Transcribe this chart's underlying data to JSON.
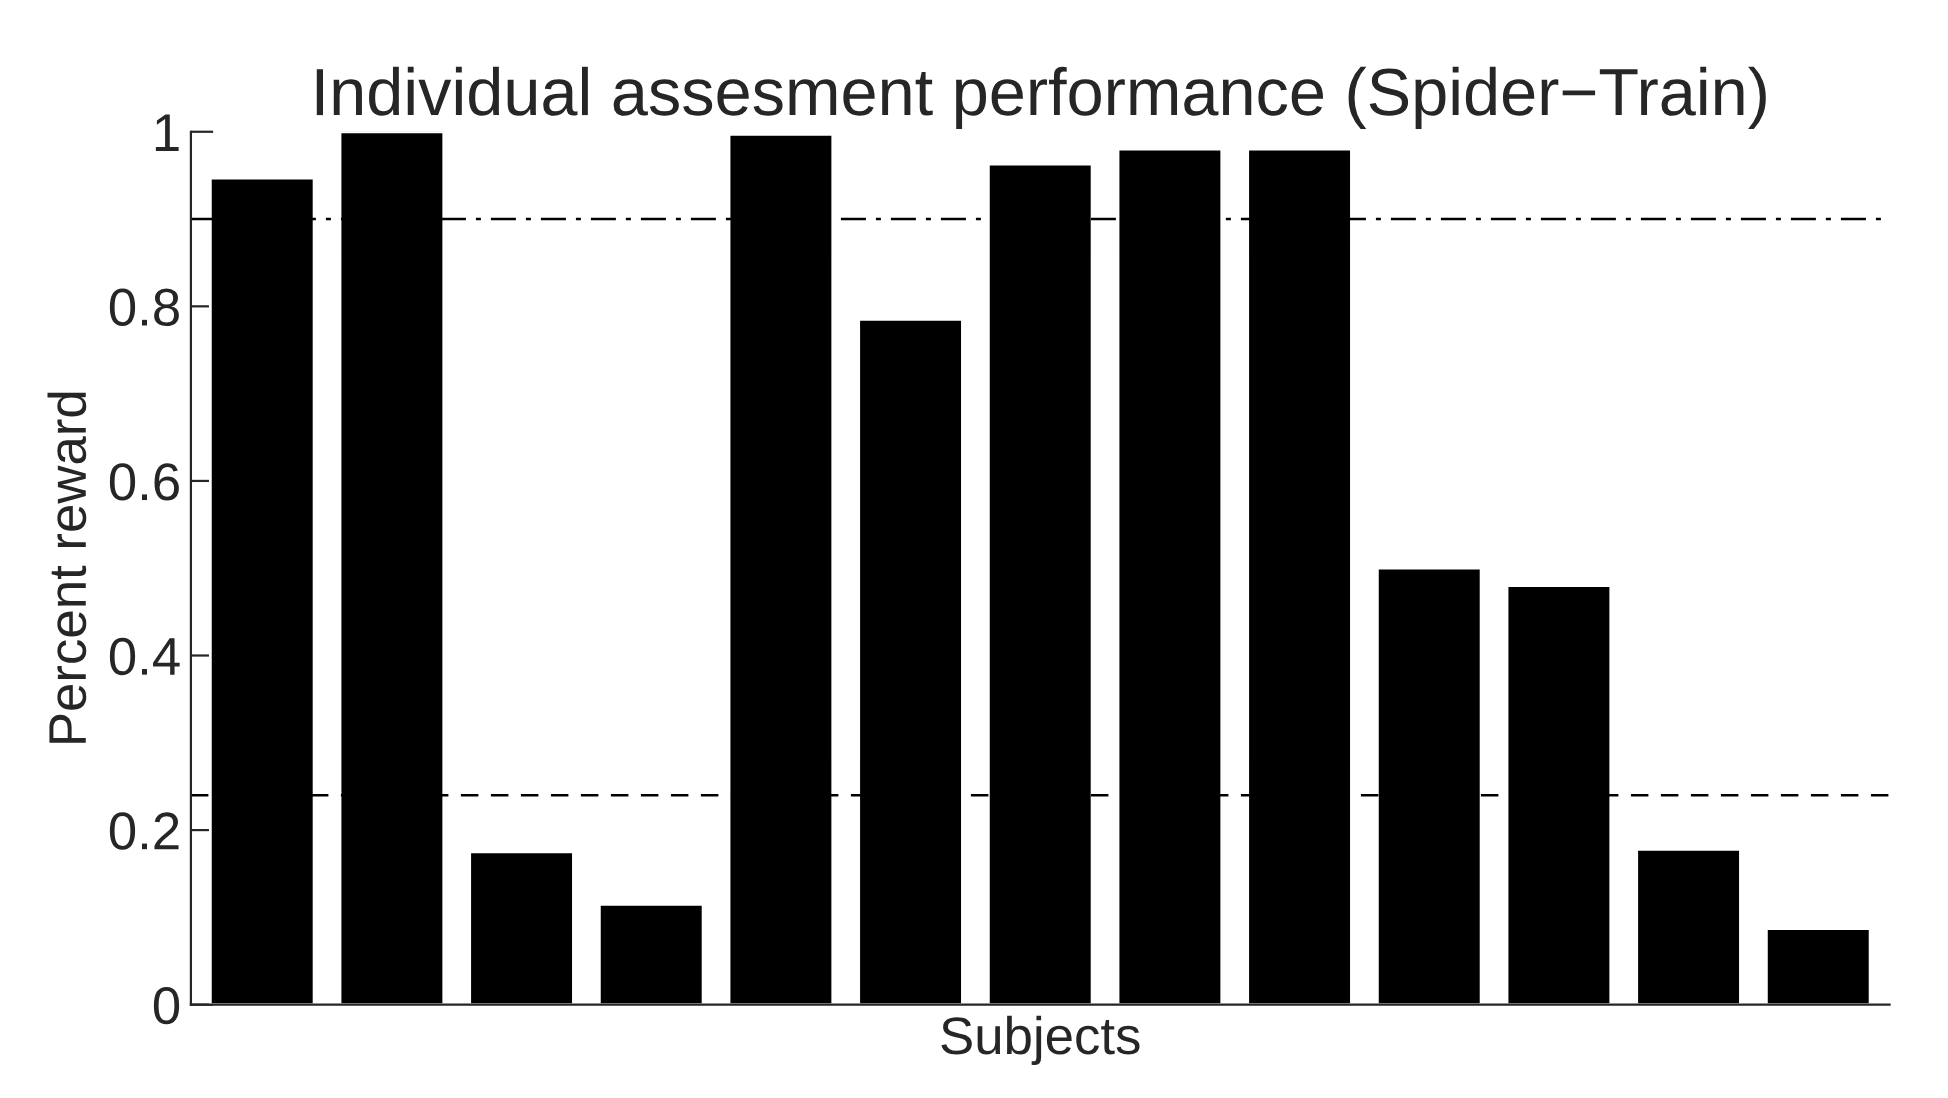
{
  "chart_data": {
    "type": "bar",
    "title": "Individual assesment performance (Spider−Train)",
    "xlabel": "Subjects",
    "ylabel": "Percent reward",
    "categories": [
      null,
      null,
      null,
      null,
      null,
      null,
      null,
      null,
      null,
      null,
      null,
      null,
      null
    ],
    "values": [
      0.947,
      1.0,
      0.175,
      0.115,
      0.997,
      0.785,
      0.963,
      0.98,
      0.98,
      0.5,
      0.48,
      0.178,
      0.087
    ],
    "color": "#000000",
    "ylim": [
      0,
      1
    ],
    "yticks": [
      0,
      0.2,
      0.4,
      0.6,
      0.8,
      1
    ],
    "ref_lines": [
      {
        "axis": "y",
        "value": 0.9,
        "line_style": "dashdot",
        "color": "#000000"
      },
      {
        "axis": "y",
        "value": 0.24,
        "line_style": "dashed",
        "color": "#000000"
      }
    ],
    "tick_labels": "y",
    "grid": false,
    "legend": false
  }
}
